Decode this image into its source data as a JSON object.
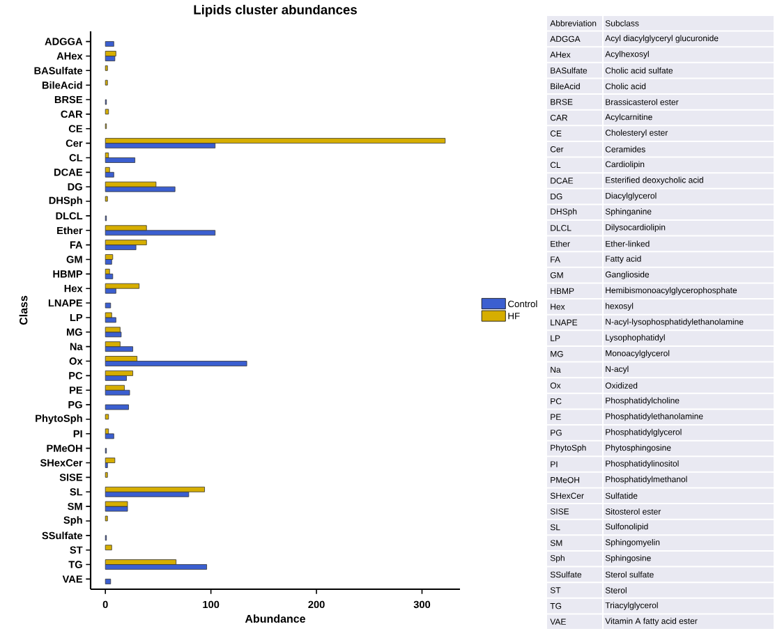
{
  "chart_data": [
    {
      "type": "bar",
      "orientation": "horizontal",
      "title": "Lipids cluster abundances",
      "xlabel": "Abundance",
      "ylabel": "Class",
      "categories": [
        "ADGGA",
        "AHex",
        "BASulfate",
        "BileAcid",
        "BRSE",
        "CAR",
        "CE",
        "Cer",
        "CL",
        "DCAE",
        "DG",
        "DHSph",
        "DLCL",
        "Ether",
        "FA",
        "GM",
        "HBMP",
        "Hex",
        "LNAPE",
        "LP",
        "MG",
        "Na",
        "Ox",
        "PC",
        "PE",
        "PG",
        "PhytoSph",
        "PI",
        "PMeOH",
        "SHexCer",
        "SISE",
        "SL",
        "SM",
        "Sph",
        "SSulfate",
        "ST",
        "TG",
        "VAE"
      ],
      "series": [
        {
          "name": "Control",
          "color": "#3b5fd0",
          "values": [
            8,
            9,
            null,
            null,
            1,
            null,
            null,
            104,
            28,
            8,
            66,
            null,
            1,
            104,
            29,
            6,
            7,
            10,
            5,
            10,
            15,
            26,
            134,
            20,
            23,
            22,
            null,
            8,
            1,
            2,
            null,
            79,
            21,
            null,
            1,
            null,
            96,
            5
          ]
        },
        {
          "name": "HF",
          "color": "#d6ae00",
          "values": [
            null,
            10,
            2,
            2,
            null,
            3,
            1,
            322,
            3,
            4,
            48,
            2,
            null,
            39,
            39,
            7,
            4,
            32,
            null,
            6,
            14,
            14,
            30,
            26,
            18,
            null,
            3,
            3,
            null,
            9,
            2,
            94,
            21,
            2,
            null,
            6,
            67,
            null
          ]
        }
      ],
      "xlim": [
        -14,
        336
      ],
      "xticks": [
        0,
        100,
        200,
        300
      ],
      "legend": "right"
    },
    {
      "type": "other",
      "annotations": [
        "Abbreviation",
        "Subclass",
        "ADGGA",
        "Acyl diacylglyceryl glucuronide",
        "AHex",
        "Acylhexosyl",
        "BASulfate",
        "Cholic acid sulfate",
        "BileAcid",
        "Cholic acid",
        "BRSE",
        "Brassicasterol ester",
        "CAR",
        "Acylcarnitine",
        "CE",
        "Cholesteryl ester",
        "Cer",
        "Ceramides",
        "CL",
        "Cardiolipin",
        "DCAE",
        "Esterified deoxycholic acid",
        "DG",
        "Diacylglycerol",
        "DHSph",
        "Sphinganine",
        "DLCL",
        "Dilysocardiolipin",
        "Ether",
        "Ether-linked",
        "FA",
        "Fatty acid",
        "GM",
        "Ganglioside",
        "HBMP",
        "Hemibismonoacylglycerophosphate",
        "Hex",
        "hexosyl",
        "LNAPE",
        "N-acyl-lysophosphatidylethanolamine",
        "LP",
        "Lysophophatidyl",
        "MG",
        "Monoacylglycerol",
        "Na",
        "N-acyl",
        "Ox",
        "Oxidized",
        "PC",
        "Phosphatidylcholine",
        "PE",
        "Phosphatidylethanolamine",
        "PG",
        "Phosphatidylglycerol",
        "PhytoSph",
        "Phytosphingosine",
        "PI",
        "Phosphatidylinositol",
        "PMeOH",
        "Phosphatidylmethanol",
        "SHexCer",
        "Sulfatide",
        "SISE",
        "Sitosterol ester",
        "SL",
        "Sulfonolipid",
        "SM",
        "Sphingomyelin",
        "Sph",
        "Sphingosine",
        "SSulfate",
        "Sterol sulfate",
        "ST",
        "Sterol",
        "TG",
        "Triacylglycerol",
        "VAE",
        "Vitamin A fatty acid ester"
      ]
    }
  ]
}
